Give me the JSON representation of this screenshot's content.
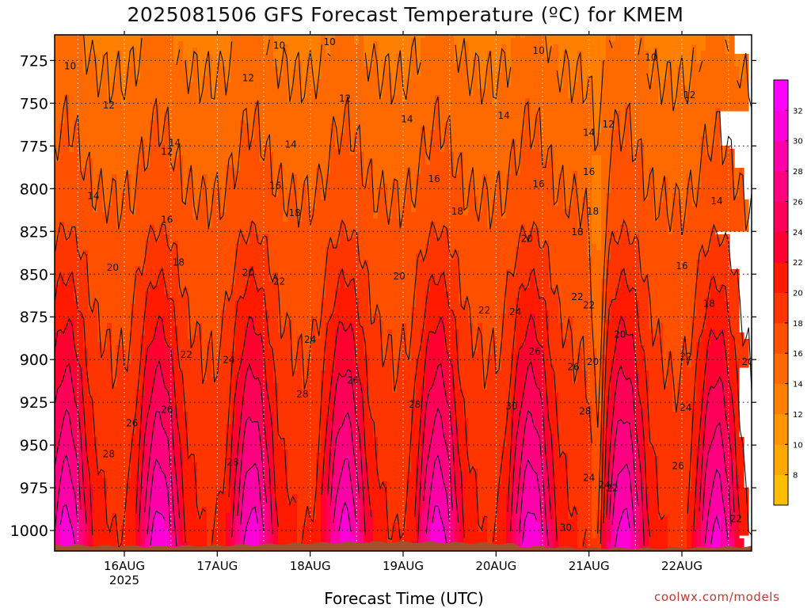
{
  "chart_data": {
    "type": "heatmap",
    "title": "2025081506 GFS Forecast Temperature (ºC) for KMEM",
    "xlabel": "Forecast Time (UTC)",
    "ylabel": "",
    "y_ticks": [
      725,
      750,
      775,
      800,
      825,
      850,
      875,
      900,
      925,
      950,
      975,
      1000
    ],
    "ylim": [
      1012,
      710
    ],
    "x_ticks": [
      {
        "label": "16AUG",
        "sub": "2025",
        "t": 24
      },
      {
        "label": "17AUG",
        "sub": "",
        "t": 48
      },
      {
        "label": "18AUG",
        "sub": "",
        "t": 72
      },
      {
        "label": "19AUG",
        "sub": "",
        "t": 96
      },
      {
        "label": "20AUG",
        "sub": "",
        "t": 120
      },
      {
        "label": "21AUG",
        "sub": "",
        "t": 144
      },
      {
        "label": "22AUG",
        "sub": "",
        "t": 168
      }
    ],
    "xlim": [
      6,
      186
    ],
    "grid": true,
    "colorbar": {
      "levels": [
        6,
        8,
        10,
        12,
        14,
        16,
        18,
        20,
        22,
        24,
        26,
        28,
        30,
        32,
        34
      ],
      "labels": [
        8,
        10,
        12,
        14,
        16,
        18,
        20,
        22,
        24,
        26,
        28,
        30,
        32
      ],
      "colors": [
        "#ffbf00",
        "#ffa800",
        "#ff9500",
        "#ff8000",
        "#ff6a00",
        "#ff5000",
        "#ff3500",
        "#ff1a00",
        "#ff0030",
        "#ff0058",
        "#ff0080",
        "#ff00a8",
        "#ff00d8",
        "#ff00ff"
      ]
    },
    "contour_labels": [
      {
        "v": "10",
        "t": 10,
        "p": 728
      },
      {
        "v": "10",
        "t": 64,
        "p": 716
      },
      {
        "v": "10",
        "t": 77,
        "p": 714
      },
      {
        "v": "10",
        "t": 131,
        "p": 719
      },
      {
        "v": "10",
        "t": 160,
        "p": 723
      },
      {
        "v": "12",
        "t": 56,
        "p": 735
      },
      {
        "v": "12",
        "t": 81,
        "p": 747
      },
      {
        "v": "12",
        "t": 20,
        "p": 751
      },
      {
        "v": "12",
        "t": 35,
        "p": 778
      },
      {
        "v": "12",
        "t": 149,
        "p": 762
      },
      {
        "v": "12",
        "t": 170,
        "p": 745
      },
      {
        "v": "14",
        "t": 37,
        "p": 773
      },
      {
        "v": "14",
        "t": 67,
        "p": 774
      },
      {
        "v": "14",
        "t": 97,
        "p": 759
      },
      {
        "v": "14",
        "t": 122,
        "p": 757
      },
      {
        "v": "14",
        "t": 144,
        "p": 767
      },
      {
        "v": "14",
        "t": 16,
        "p": 804
      },
      {
        "v": "14",
        "t": 177,
        "p": 807
      },
      {
        "v": "16",
        "t": 144,
        "p": 790
      },
      {
        "v": "16",
        "t": 104,
        "p": 794
      },
      {
        "v": "16",
        "t": 63,
        "p": 798
      },
      {
        "v": "16",
        "t": 131,
        "p": 797
      },
      {
        "v": "16",
        "t": 35,
        "p": 818
      },
      {
        "v": "16",
        "t": 168,
        "p": 845
      },
      {
        "v": "18",
        "t": 68,
        "p": 814
      },
      {
        "v": "18",
        "t": 110,
        "p": 813
      },
      {
        "v": "18",
        "t": 145,
        "p": 813
      },
      {
        "v": "18",
        "t": 141,
        "p": 825
      },
      {
        "v": "18",
        "t": 38,
        "p": 843
      },
      {
        "v": "18",
        "t": 175,
        "p": 867
      },
      {
        "v": "20",
        "t": 128,
        "p": 829
      },
      {
        "v": "20",
        "t": 21,
        "p": 846
      },
      {
        "v": "20",
        "t": 56,
        "p": 849
      },
      {
        "v": "20",
        "t": 95,
        "p": 851
      },
      {
        "v": "20",
        "t": 152,
        "p": 885
      },
      {
        "v": "20",
        "t": 145,
        "p": 901
      },
      {
        "v": "20",
        "t": 185,
        "p": 901
      },
      {
        "v": "22",
        "t": 64,
        "p": 854
      },
      {
        "v": "22",
        "t": 117,
        "p": 871
      },
      {
        "v": "22",
        "t": 141,
        "p": 863
      },
      {
        "v": "22",
        "t": 144,
        "p": 868
      },
      {
        "v": "22",
        "t": 169,
        "p": 898
      },
      {
        "v": "22",
        "t": 40,
        "p": 897
      },
      {
        "v": "22",
        "t": 150,
        "p": 975
      },
      {
        "v": "22",
        "t": 182,
        "p": 993
      },
      {
        "v": "24",
        "t": 72,
        "p": 888
      },
      {
        "v": "24",
        "t": 125,
        "p": 872
      },
      {
        "v": "24",
        "t": 51,
        "p": 900
      },
      {
        "v": "24",
        "t": 169,
        "p": 928
      },
      {
        "v": "24",
        "t": 144,
        "p": 969
      },
      {
        "v": "24",
        "t": 148,
        "p": 973
      },
      {
        "v": "26",
        "t": 130,
        "p": 895
      },
      {
        "v": "26",
        "t": 83,
        "p": 912
      },
      {
        "v": "26",
        "t": 35,
        "p": 929
      },
      {
        "v": "26",
        "t": 26,
        "p": 937
      },
      {
        "v": "26",
        "t": 140,
        "p": 904
      },
      {
        "v": "26",
        "t": 167,
        "p": 962
      },
      {
        "v": "28",
        "t": 70,
        "p": 920
      },
      {
        "v": "28",
        "t": 99,
        "p": 926
      },
      {
        "v": "28",
        "t": 20,
        "p": 955
      },
      {
        "v": "28",
        "t": 52,
        "p": 960
      },
      {
        "v": "28",
        "t": 143,
        "p": 930
      },
      {
        "v": "30",
        "t": 124,
        "p": 927
      },
      {
        "v": "30",
        "t": 138,
        "p": 998
      }
    ]
  },
  "credit": "coolwx.com/models"
}
